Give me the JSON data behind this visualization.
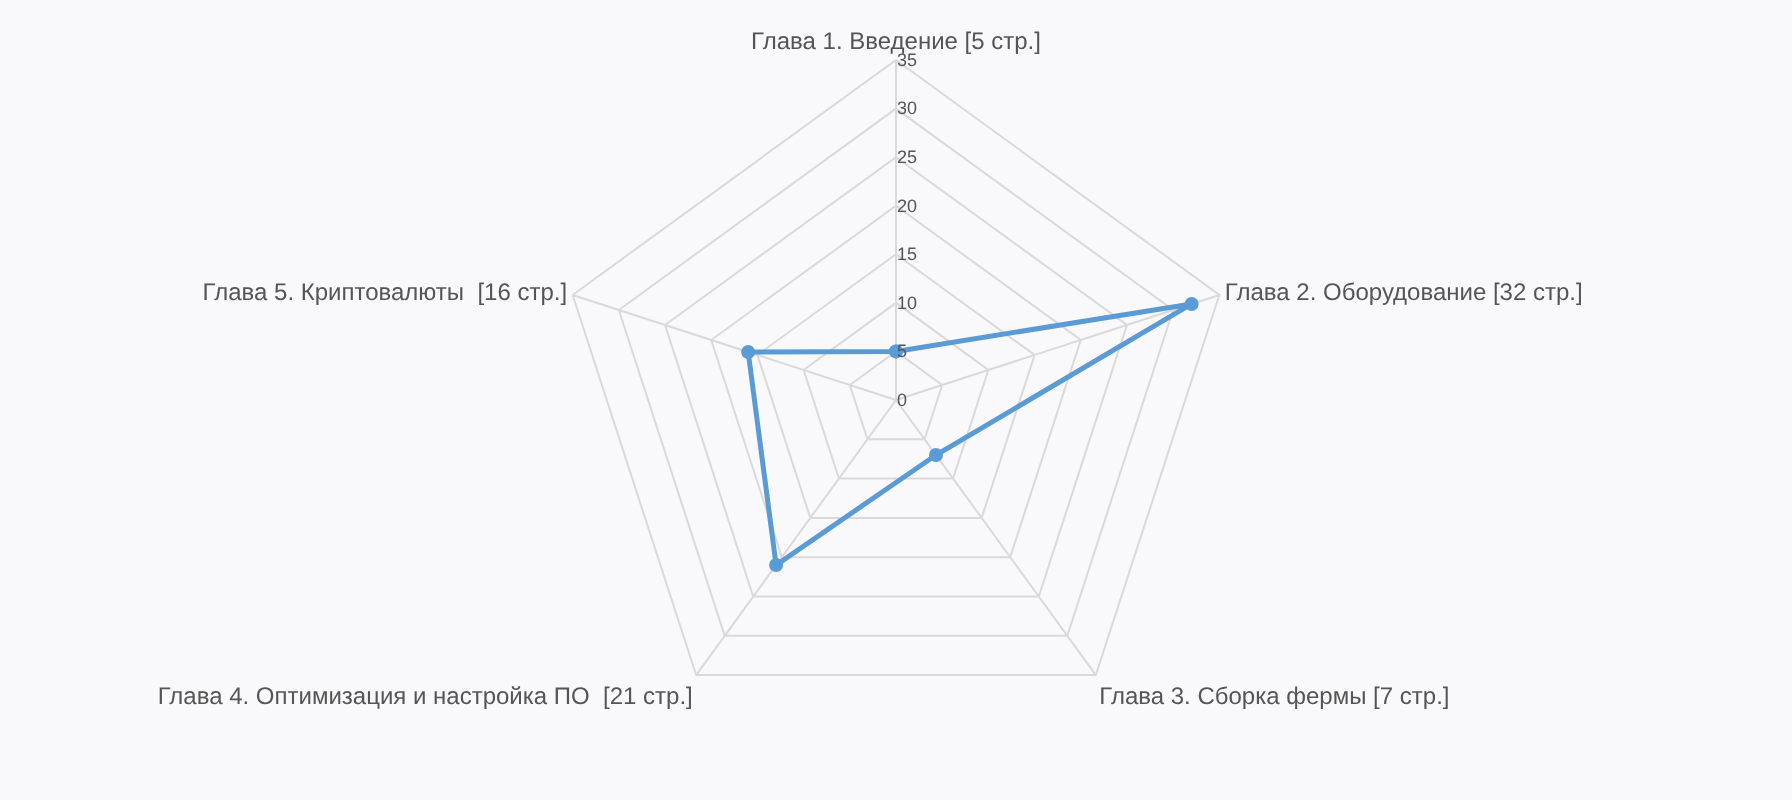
{
  "chart_data": {
    "type": "radar",
    "categories": [
      "Глава 1. Введение [5 стр.]",
      "Глава 2. Оборудование [32 стр.]",
      "Глава 3. Сборка фермы [7 стр.]",
      "Глава 4. Оптимизация и настройка ПО  [21 стр.]",
      "Глава 5. Криптовалюты  [16 стр.]"
    ],
    "series": [
      {
        "color": "#5b9bd5",
        "values": [
          5,
          32,
          7,
          21,
          16
        ]
      }
    ],
    "ylim": [
      0,
      35
    ],
    "yticks": [
      0,
      5,
      10,
      15,
      20,
      25,
      30,
      35
    ],
    "grid": true,
    "marker": "circle",
    "line_style": "solid"
  }
}
